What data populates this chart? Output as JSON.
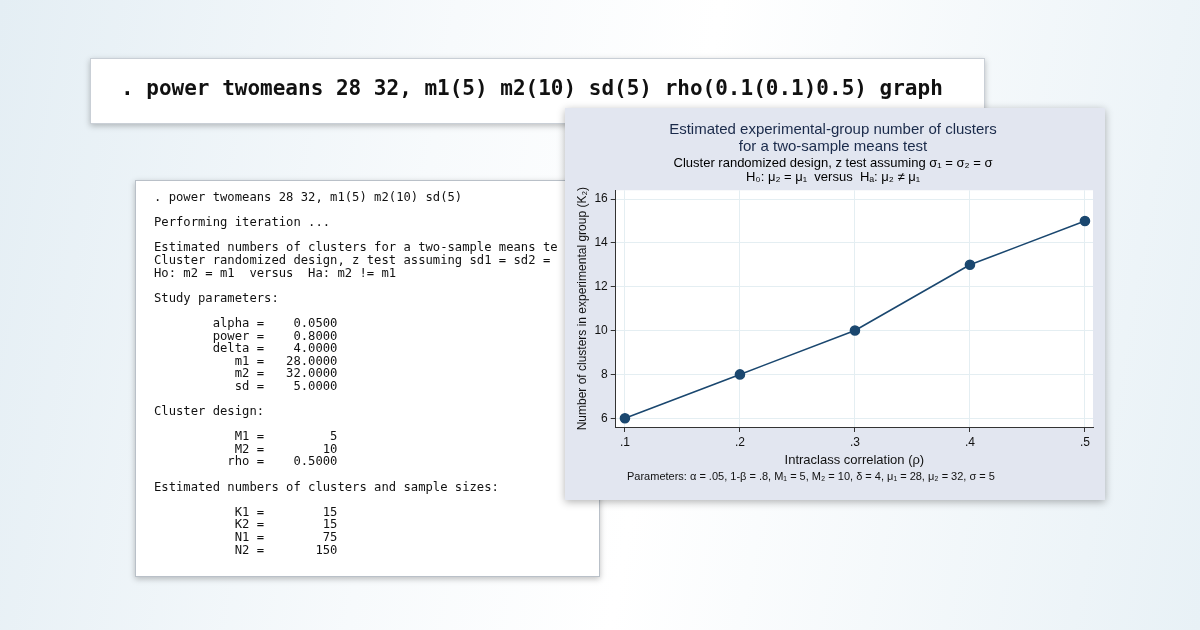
{
  "chart_data": {
    "type": "line",
    "title": "Estimated experimental-group number of clusters\nfor a two-sample means test",
    "subtitle": "Cluster randomized design, z test assuming σ₁ = σ₂ = σ\nH₀: μ₂ = μ₁  versus  Hₐ: μ₂ ≠ μ₁",
    "xlabel": "Intraclass correlation (ρ)",
    "ylabel": "Number of clusters in experimental group (K₂)",
    "x": [
      0.1,
      0.2,
      0.3,
      0.4,
      0.5
    ],
    "series": [
      {
        "color": "#1a476f",
        "values": [
          6,
          8,
          10,
          13,
          15
        ]
      }
    ],
    "xlim": [
      0.092,
      0.507
    ],
    "xticks": [
      {
        "value": 0.1,
        "label": ".1"
      },
      {
        "value": 0.2,
        "label": ".2"
      },
      {
        "value": 0.3,
        "label": ".3"
      },
      {
        "value": 0.4,
        "label": ".4"
      },
      {
        "value": 0.5,
        "label": ".5"
      }
    ],
    "ylim": [
      5.6,
      16.4
    ],
    "yticks": [
      6,
      8,
      10,
      12,
      14,
      16
    ],
    "grid": true,
    "marker": "circle",
    "line_style": "solid",
    "legend": false,
    "annotations": [
      ". power twomeans 28 32, m1(5) m2(10) sd(5) rho(0.1(0.1)0.5) graph",
      ". power twomeans 28 32, m1(5) m2(10) sd(5)\n\nPerforming iteration ...\n\nEstimated numbers of clusters for a two-sample means te\nCluster randomized design, z test assuming sd1 = sd2 =\nHo: m2 = m1  versus  Ha: m2 != m1\n\nStudy parameters:\n\n        alpha =    0.0500\n        power =    0.8000\n        delta =    4.0000\n           m1 =   28.0000\n           m2 =   32.0000\n           sd =    5.0000\n\nCluster design:\n\n           M1 =         5\n           M2 =        10\n          rho =    0.5000\n\nEstimated numbers of clusters and sample sizes:\n\n           K1 =        15\n           K2 =        15\n           N1 =        75\n           N2 =       150",
      "Parameters: α = .05, 1-β = .8, M₁ = 5, M₂ = 10, δ = 4, μ₁ = 28, μ₂ = 32, σ = 5"
    ]
  }
}
